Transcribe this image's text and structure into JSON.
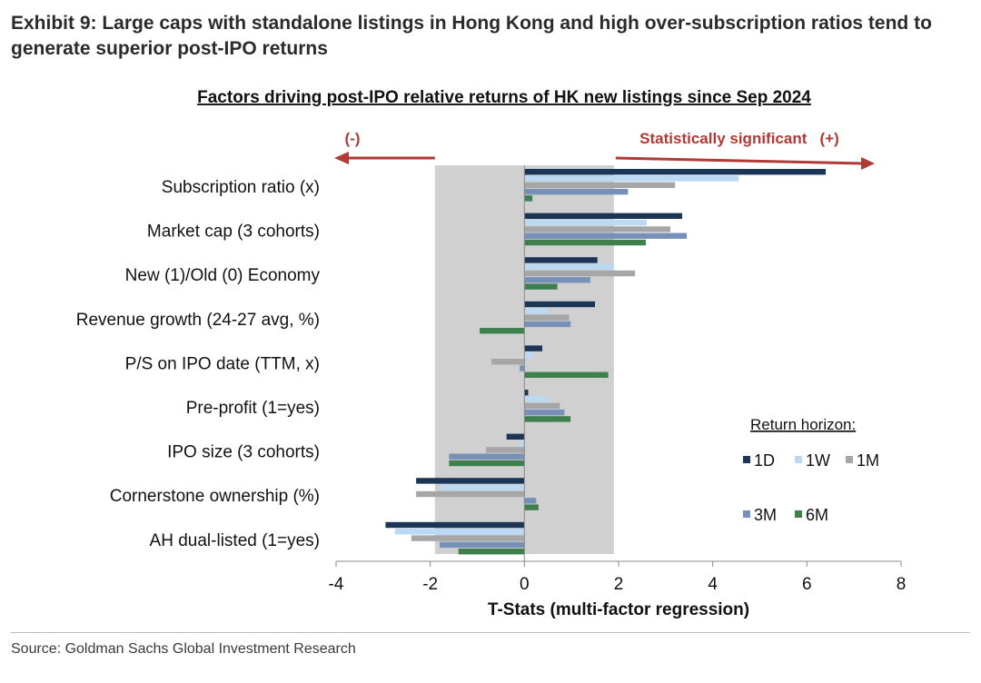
{
  "exhibit_title": "Exhibit 9: Large caps with standalone listings in Hong Kong and high over-subscription ratios tend to generate superior post-IPO returns",
  "source": "Source: Goldman Sachs Global Investment Research",
  "colors": {
    "1D": "#1c3557",
    "1W": "#bcd9f3",
    "1M": "#a6a6a6",
    "3M": "#7690b8",
    "6M": "#3e7f4d",
    "arrow": "#b03a35",
    "insignificant_band": "#d0d0d0"
  },
  "chart_data": {
    "type": "bar",
    "orientation": "horizontal",
    "title": "Factors driving post-IPO relative returns of HK new listings since Sep 2024",
    "xlabel": "T-Stats (multi-factor regression)",
    "ylabel": "",
    "xlim": [
      -4,
      8
    ],
    "xticks": [
      -4,
      -2,
      0,
      2,
      4,
      6,
      8
    ],
    "insignificant_band": [
      -1.9,
      1.9
    ],
    "annotations": {
      "negative": "(-)",
      "positive": "Statistically significant   (+)"
    },
    "legend_title": "Return horizon:",
    "legend_position": "right",
    "categories": [
      "Subscription ratio (x)",
      "Market cap (3 cohorts)",
      "New (1)/Old (0) Economy",
      "Revenue growth (24-27 avg, %)",
      "P/S on IPO date (TTM, x)",
      "Pre-profit (1=yes)",
      "IPO size (3 cohorts)",
      "Cornerstone ownership (%)",
      "AH dual-listed (1=yes)"
    ],
    "series": [
      {
        "name": "1D",
        "values": [
          6.4,
          3.35,
          1.55,
          1.5,
          0.38,
          0.08,
          -0.38,
          -2.3,
          -2.95
        ]
      },
      {
        "name": "1W",
        "values": [
          4.55,
          2.6,
          1.9,
          0.5,
          0.18,
          0.5,
          -0.1,
          -1.75,
          -2.75
        ]
      },
      {
        "name": "1M",
        "values": [
          3.2,
          3.1,
          2.35,
          0.95,
          -0.7,
          0.75,
          -0.82,
          -2.3,
          -2.4
        ]
      },
      {
        "name": "3M",
        "values": [
          2.2,
          3.45,
          1.4,
          0.98,
          -0.1,
          0.85,
          -1.6,
          0.25,
          -1.8
        ]
      },
      {
        "name": "6M",
        "values": [
          0.17,
          2.58,
          0.7,
          -0.95,
          1.78,
          0.98,
          -1.6,
          0.3,
          -1.4
        ]
      }
    ]
  }
}
